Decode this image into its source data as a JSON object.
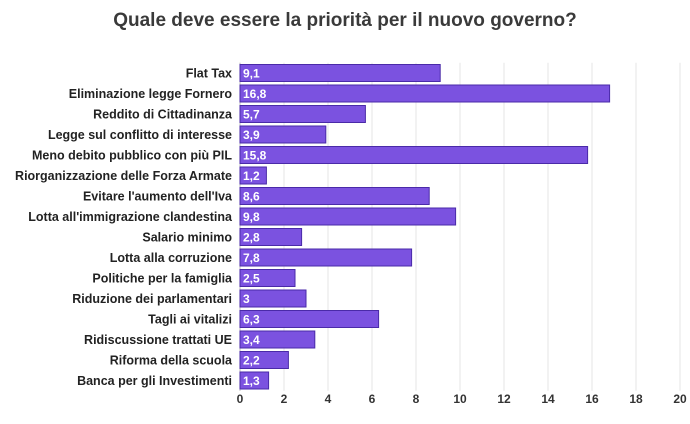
{
  "chart_data": {
    "type": "bar",
    "orientation": "horizontal",
    "title": "Quale deve essere la priorità per il nuovo governo?",
    "categories": [
      "Flat Tax",
      "Eliminazione legge Fornero",
      "Reddito di Cittadinanza",
      "Legge sul conflitto di interesse",
      "Meno debito pubblico con più PIL",
      "Riorganizzazione delle Forza Armate",
      "Evitare l'aumento dell'Iva",
      "Lotta all'immigrazione clandestina",
      "Salario minimo",
      "Lotta alla corruzione",
      "Politiche per la famiglia",
      "Riduzione dei parlamentari",
      "Tagli ai vitalizi",
      "Ridiscussione trattati UE",
      "Riforma della scuola",
      "Banca per gli Investimenti"
    ],
    "values": [
      9.1,
      16.8,
      5.7,
      3.9,
      15.8,
      1.2,
      8.6,
      9.8,
      2.8,
      7.8,
      2.5,
      3,
      6.3,
      3.4,
      2.2,
      1.3
    ],
    "data_labels": [
      "9,1",
      "16,8",
      "5,7",
      "3,9",
      "15,8",
      "1,2",
      "8,6",
      "9,8",
      "2,8",
      "7,8",
      "2,5",
      "3",
      "6,3",
      "3,4",
      "2,2",
      "1,3"
    ],
    "xlim": [
      0,
      20
    ],
    "x_ticks": [
      "0",
      "2",
      "4",
      "6",
      "8",
      "10",
      "12",
      "14",
      "16",
      "18",
      "20"
    ],
    "grid": true,
    "legend": "none",
    "bar_color": "#7b52e0",
    "bar_border_color": "#4a2aa8",
    "grid_color": "#e4e4e4"
  }
}
